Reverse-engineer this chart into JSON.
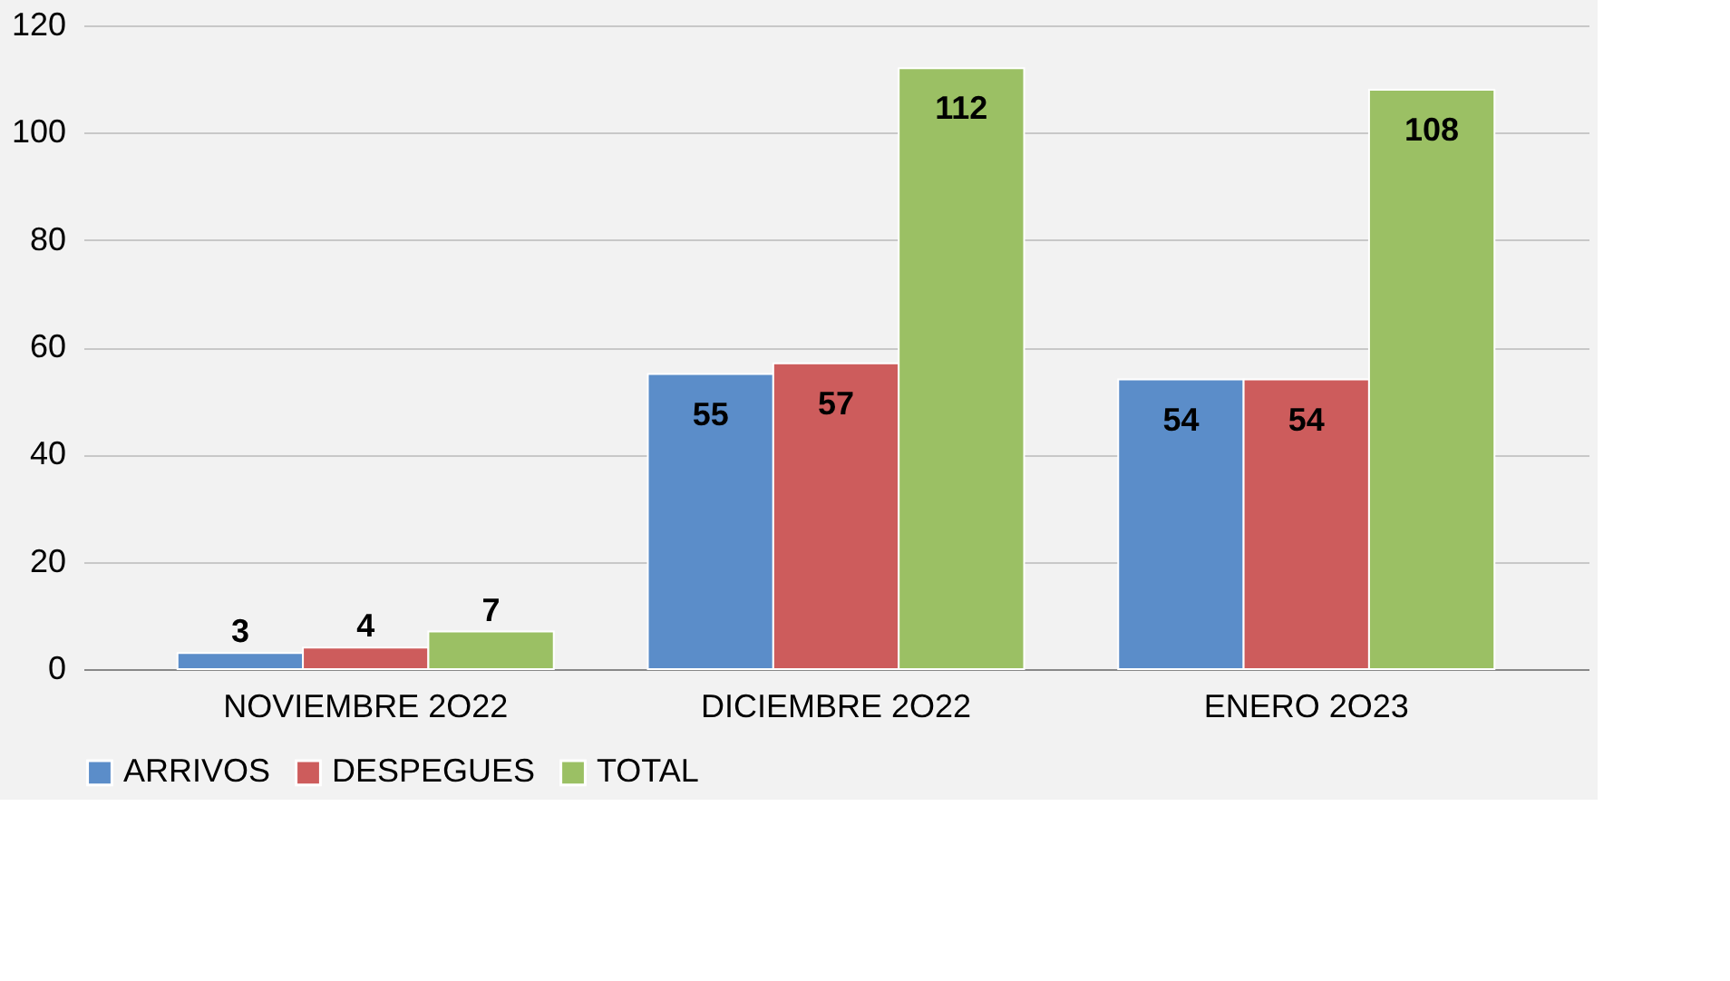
{
  "chart_data": {
    "type": "bar",
    "categories": [
      "NOVIEMBRE 2O22",
      "DICIEMBRE 2O22",
      "ENERO 2O23"
    ],
    "series": [
      {
        "name": "ARRIVOS",
        "color": "#5b8dc9",
        "values": [
          3,
          55,
          54
        ]
      },
      {
        "name": "DESPEGUES",
        "color": "#cd5c5c",
        "values": [
          4,
          57,
          54
        ]
      },
      {
        "name": "TOTAL",
        "color": "#9bc064",
        "values": [
          7,
          112,
          108
        ]
      }
    ],
    "ylim": [
      0,
      120
    ],
    "yticks": [
      0,
      20,
      40,
      60,
      80,
      100,
      120
    ],
    "grid": "y",
    "legend": "bottom",
    "data_labels": true
  }
}
